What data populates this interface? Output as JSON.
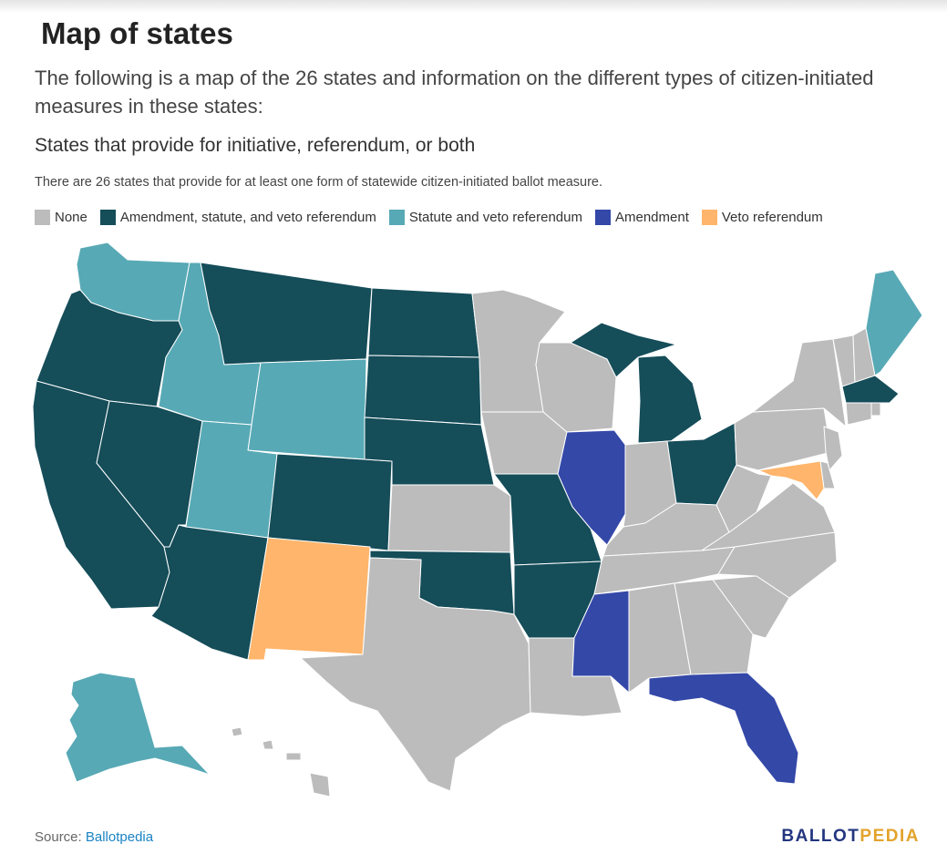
{
  "header": {
    "title": "Map of states",
    "intro": "The following is a map of the 26 states and information on the different types of citizen-initiated measures in these states:",
    "subtitle": "States that provide for initiative, referendum, or both",
    "description": "There are 26 states that provide for at least one form of statewide citizen-initiated ballot measure."
  },
  "legend": [
    {
      "label": "None",
      "color": "#bcbcbc"
    },
    {
      "label": "Amendment, statute, and veto referendum",
      "color": "#154d59"
    },
    {
      "label": "Statute and veto referendum",
      "color": "#57a9b5"
    },
    {
      "label": "Amendment",
      "color": "#3448a8"
    },
    {
      "label": "Veto referendum",
      "color": "#ffb56b"
    }
  ],
  "map_data": {
    "type": "choropleth",
    "regions": [
      {
        "state": "WA",
        "category": "Statute and veto referendum"
      },
      {
        "state": "OR",
        "category": "Amendment, statute, and veto referendum"
      },
      {
        "state": "CA",
        "category": "Amendment, statute, and veto referendum"
      },
      {
        "state": "ID",
        "category": "Statute and veto referendum"
      },
      {
        "state": "NV",
        "category": "Amendment, statute, and veto referendum"
      },
      {
        "state": "MT",
        "category": "Amendment, statute, and veto referendum"
      },
      {
        "state": "WY",
        "category": "Statute and veto referendum"
      },
      {
        "state": "UT",
        "category": "Statute and veto referendum"
      },
      {
        "state": "AZ",
        "category": "Amendment, statute, and veto referendum"
      },
      {
        "state": "CO",
        "category": "Amendment, statute, and veto referendum"
      },
      {
        "state": "NM",
        "category": "Veto referendum"
      },
      {
        "state": "ND",
        "category": "Amendment, statute, and veto referendum"
      },
      {
        "state": "SD",
        "category": "Amendment, statute, and veto referendum"
      },
      {
        "state": "NE",
        "category": "Amendment, statute, and veto referendum"
      },
      {
        "state": "KS",
        "category": "None"
      },
      {
        "state": "OK",
        "category": "Amendment, statute, and veto referendum"
      },
      {
        "state": "TX",
        "category": "None"
      },
      {
        "state": "MN",
        "category": "None"
      },
      {
        "state": "IA",
        "category": "None"
      },
      {
        "state": "MO",
        "category": "Amendment, statute, and veto referendum"
      },
      {
        "state": "AR",
        "category": "Amendment, statute, and veto referendum"
      },
      {
        "state": "LA",
        "category": "None"
      },
      {
        "state": "WI",
        "category": "None"
      },
      {
        "state": "IL",
        "category": "Amendment"
      },
      {
        "state": "MI",
        "category": "Amendment, statute, and veto referendum"
      },
      {
        "state": "IN",
        "category": "None"
      },
      {
        "state": "OH",
        "category": "Amendment, statute, and veto referendum"
      },
      {
        "state": "KY",
        "category": "None"
      },
      {
        "state": "TN",
        "category": "None"
      },
      {
        "state": "MS",
        "category": "Amendment"
      },
      {
        "state": "AL",
        "category": "None"
      },
      {
        "state": "GA",
        "category": "None"
      },
      {
        "state": "FL",
        "category": "Amendment"
      },
      {
        "state": "SC",
        "category": "None"
      },
      {
        "state": "NC",
        "category": "None"
      },
      {
        "state": "VA",
        "category": "None"
      },
      {
        "state": "WV",
        "category": "None"
      },
      {
        "state": "PA",
        "category": "None"
      },
      {
        "state": "NY",
        "category": "None"
      },
      {
        "state": "VT",
        "category": "None"
      },
      {
        "state": "NH",
        "category": "None"
      },
      {
        "state": "ME",
        "category": "Statute and veto referendum"
      },
      {
        "state": "MA",
        "category": "Amendment, statute, and veto referendum"
      },
      {
        "state": "RI",
        "category": "None"
      },
      {
        "state": "CT",
        "category": "None"
      },
      {
        "state": "NJ",
        "category": "None"
      },
      {
        "state": "DE",
        "category": "None"
      },
      {
        "state": "MD",
        "category": "Veto referendum"
      },
      {
        "state": "AK",
        "category": "Statute and veto referendum"
      },
      {
        "state": "HI",
        "category": "None"
      }
    ]
  },
  "footer": {
    "source_label": "Source:",
    "source_link": "Ballotpedia",
    "brand_part1": "BALLOT",
    "brand_part2": "PEDIA"
  }
}
